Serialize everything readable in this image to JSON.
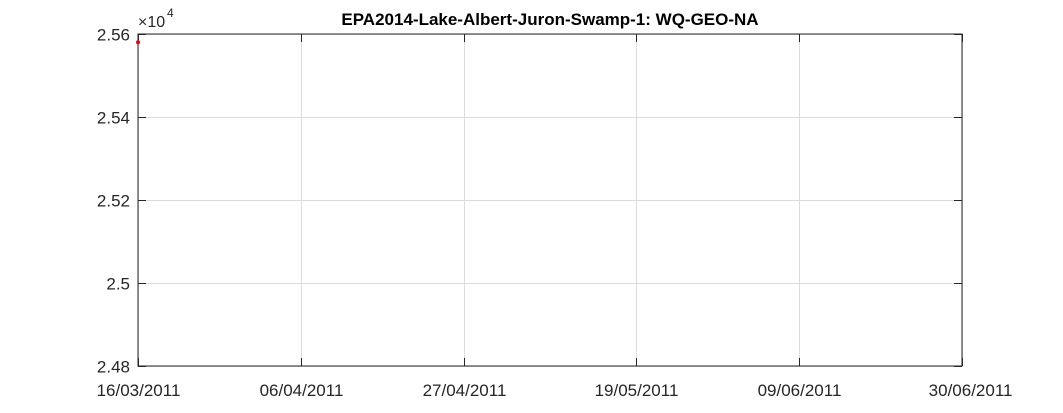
{
  "chart_data": {
    "type": "scatter",
    "title": "EPA2014-Lake-Albert-Juron-Swamp-1: WQ-GEO-NA",
    "xlabel": "",
    "ylabel": "",
    "x_tick_labels": [
      "16/03/2011",
      "06/04/2011",
      "27/04/2011",
      "19/05/2011",
      "09/06/2011",
      "30/06/2011"
    ],
    "x_ticks": [
      "2011-03-16",
      "2011-04-06",
      "2011-04-27",
      "2011-05-19",
      "2011-06-09",
      "2011-06-30"
    ],
    "xlim": [
      "2011-03-16",
      "2011-06-30"
    ],
    "y_tick_labels": [
      "2.48",
      "2.5",
      "2.52",
      "2.54",
      "2.56"
    ],
    "y_ticks": [
      2.48,
      2.5,
      2.52,
      2.54,
      2.56
    ],
    "ylim": [
      2.48,
      2.56
    ],
    "y_exponent": {
      "times": "×10",
      "power": "4"
    },
    "grid": true,
    "series": [
      {
        "color": "#ff0000",
        "points": [
          {
            "x": "2011-03-16",
            "y": 2.558
          }
        ]
      }
    ]
  }
}
